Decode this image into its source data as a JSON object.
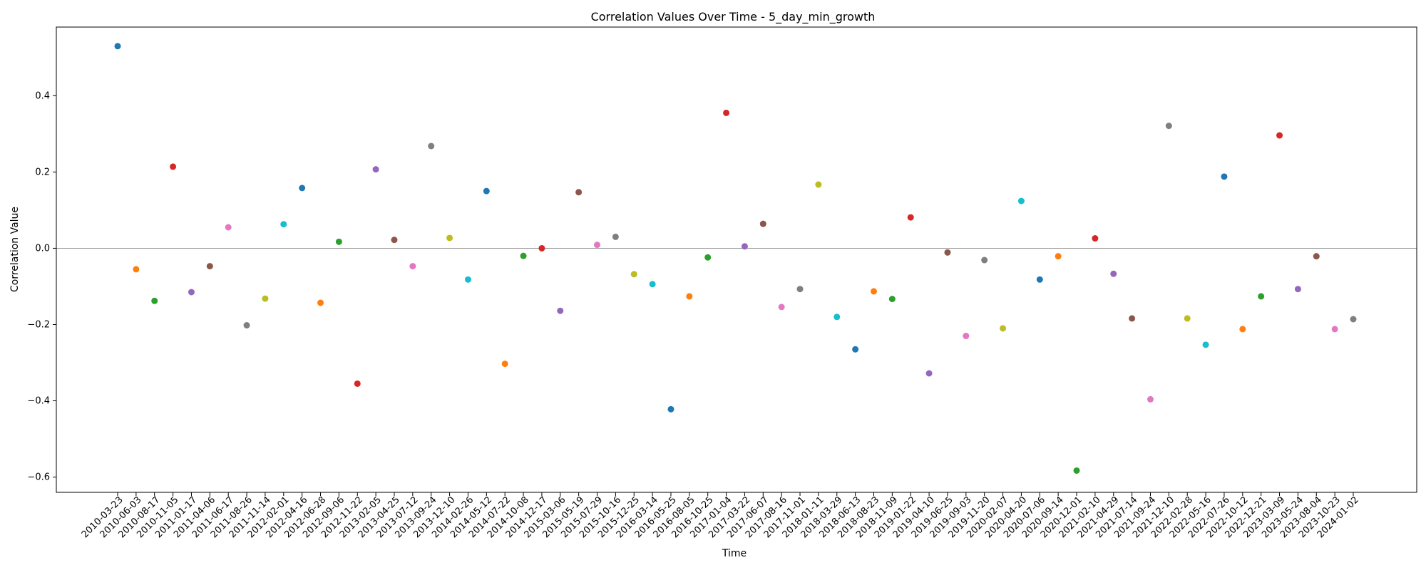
{
  "chart_data": {
    "type": "scatter",
    "title": "Correlation Values Over Time - 5_day_min_growth",
    "xlabel": "Time",
    "ylabel": "Correlation Value",
    "ylim": [
      -0.64,
      0.58
    ],
    "yticks": [
      -0.6,
      -0.4,
      -0.2,
      0.0,
      0.2,
      0.4
    ],
    "ytick_labels": [
      "−0.6",
      "−0.4",
      "−0.2",
      "0.0",
      "0.2",
      "0.4"
    ],
    "reference_line_y": 0.0,
    "reference_line_color": "#999999",
    "grid": false,
    "palette": [
      "#1f77b4",
      "#ff7f0e",
      "#2ca02c",
      "#d62728",
      "#9467bd",
      "#8c564b",
      "#e377c2",
      "#7f7f7f",
      "#bcbd22",
      "#17becf"
    ],
    "x": [
      "2010-03-23",
      "2010-06-03",
      "2010-08-17",
      "2010-11-05",
      "2011-01-17",
      "2011-04-06",
      "2011-06-17",
      "2011-08-26",
      "2011-11-14",
      "2012-02-01",
      "2012-04-16",
      "2012-06-28",
      "2012-09-06",
      "2012-11-22",
      "2013-02-05",
      "2013-04-25",
      "2013-07-12",
      "2013-09-24",
      "2013-12-10",
      "2014-02-26",
      "2014-05-12",
      "2014-07-22",
      "2014-10-08",
      "2014-12-17",
      "2015-03-06",
      "2015-05-19",
      "2015-07-29",
      "2015-10-16",
      "2015-12-25",
      "2016-03-14",
      "2016-05-25",
      "2016-08-05",
      "2016-10-25",
      "2017-01-04",
      "2017-03-22",
      "2017-06-07",
      "2017-08-16",
      "2017-11-01",
      "2018-01-11",
      "2018-03-29",
      "2018-06-13",
      "2018-08-23",
      "2018-11-09",
      "2019-01-22",
      "2019-04-10",
      "2019-06-25",
      "2019-09-03",
      "2019-11-20",
      "2020-02-07",
      "2020-04-20",
      "2020-07-06",
      "2020-09-14",
      "2020-12-01",
      "2021-02-10",
      "2021-04-29",
      "2021-07-14",
      "2021-09-24",
      "2021-12-10",
      "2022-02-28",
      "2022-05-16",
      "2022-07-26",
      "2022-10-12",
      "2022-12-21",
      "2023-03-09",
      "2023-05-24",
      "2023-08-04",
      "2023-10-23",
      "2024-01-02"
    ],
    "y": [
      0.53,
      -0.055,
      -0.138,
      0.214,
      -0.115,
      -0.047,
      0.055,
      -0.202,
      -0.132,
      0.063,
      0.158,
      -0.143,
      0.017,
      -0.355,
      0.207,
      0.022,
      -0.047,
      0.268,
      0.027,
      -0.082,
      0.15,
      -0.303,
      -0.02,
      0.0,
      -0.164,
      0.147,
      0.009,
      0.03,
      -0.068,
      -0.094,
      -0.422,
      -0.126,
      -0.024,
      0.355,
      0.005,
      0.064,
      -0.154,
      -0.107,
      0.167,
      -0.18,
      -0.265,
      -0.113,
      -0.133,
      0.081,
      -0.328,
      -0.011,
      -0.23,
      -0.031,
      -0.21,
      0.124,
      -0.082,
      -0.021,
      -0.583,
      0.026,
      -0.067,
      -0.184,
      -0.396,
      0.321,
      -0.184,
      -0.253,
      0.188,
      -0.212,
      -0.126,
      0.296,
      -0.107,
      -0.021,
      -0.212,
      -0.186
    ]
  }
}
